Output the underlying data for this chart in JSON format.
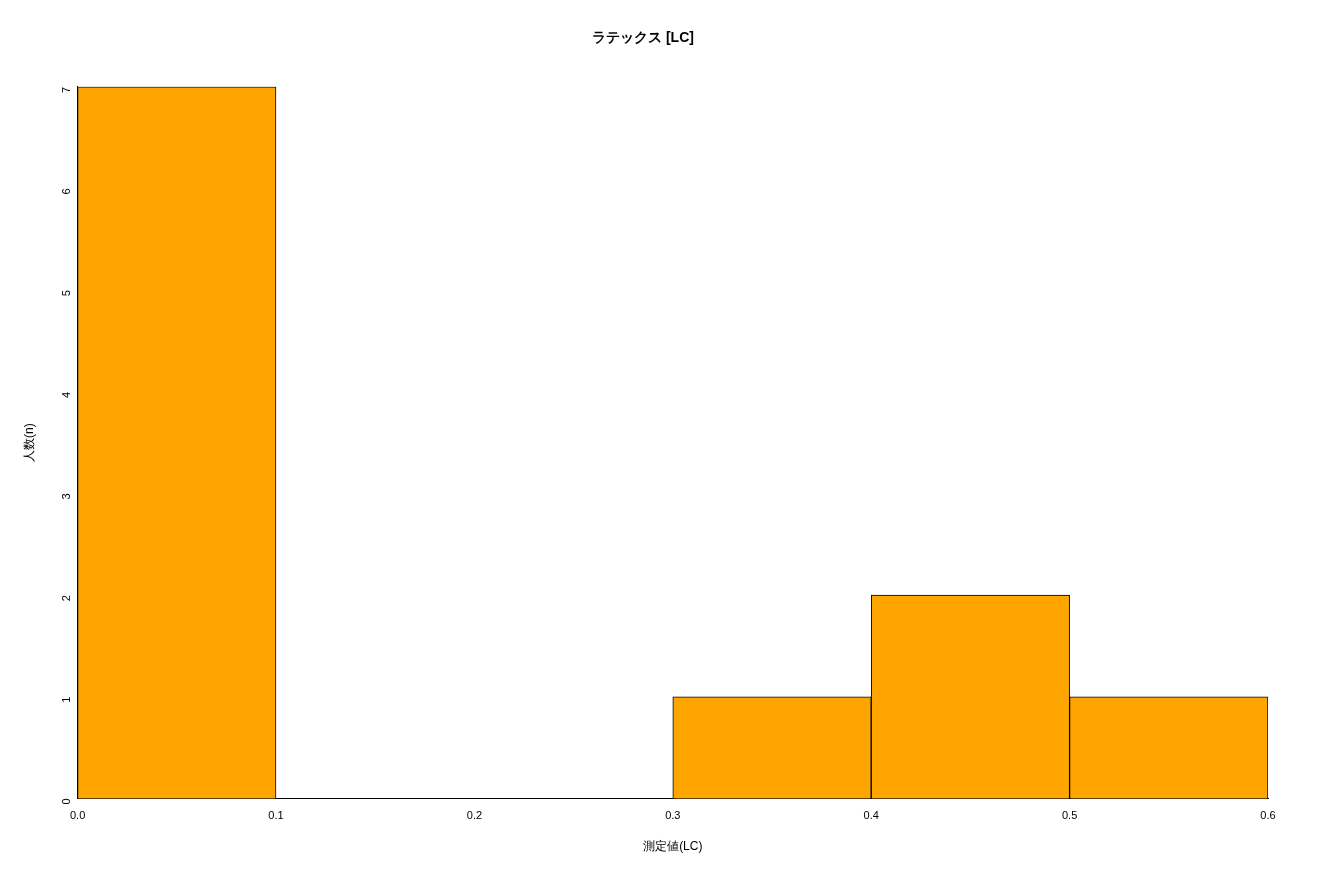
{
  "chart_data": {
    "type": "histogram",
    "title": "ラテックス [LC]",
    "xlabel": "測定値(LC)",
    "ylabel": "人数(n)",
    "bins": [
      0,
      0.1,
      0.2,
      0.3,
      0.4,
      0.5,
      0.6
    ],
    "values": [
      7,
      0,
      0,
      1,
      2,
      1
    ],
    "color": "#ffa500",
    "xlim": [
      0,
      0.6
    ],
    "xticks": [
      {
        "value": 0,
        "label": "0.0"
      },
      0.1,
      0.2,
      0.3,
      0.4,
      0.5,
      0.6
    ],
    "ylim": [
      0,
      7
    ],
    "yticks": [
      0,
      1,
      2,
      3,
      4,
      5,
      6,
      7
    ],
    "grid": false,
    "legend": false
  }
}
